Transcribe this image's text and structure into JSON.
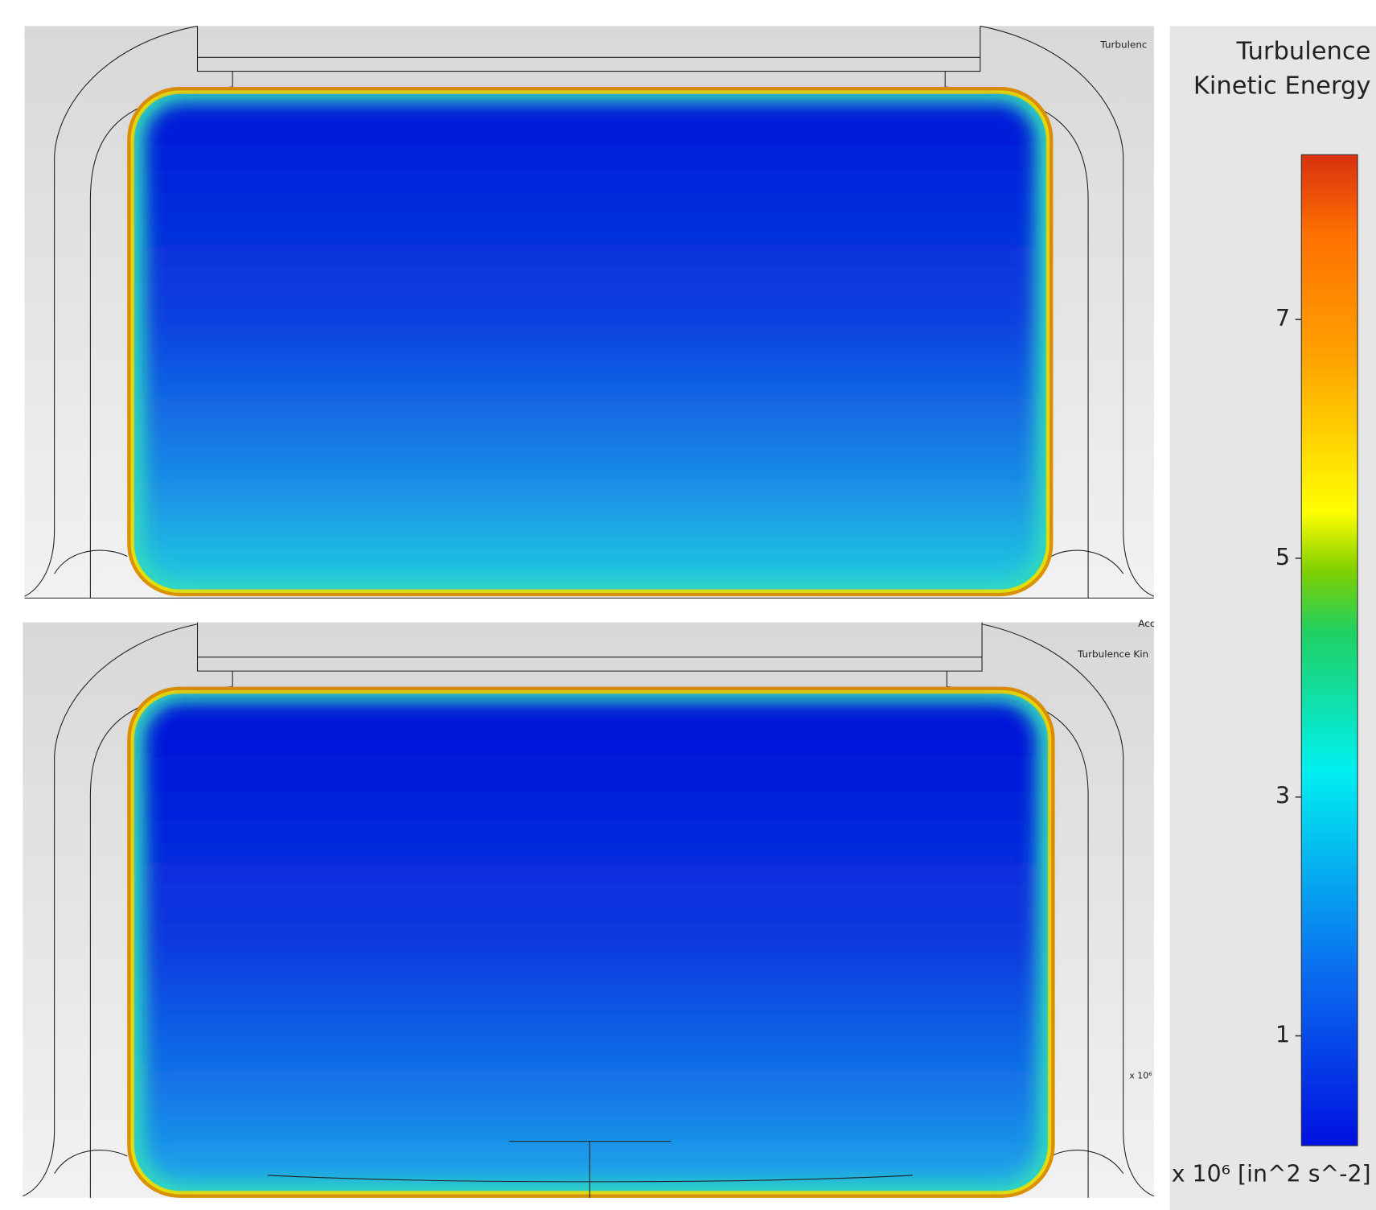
{
  "panels": [
    {
      "label": "Turbulenc"
    },
    {
      "label": "Turbulence Kin",
      "corner_text": "Acc",
      "unit": "x 10⁶"
    }
  ],
  "colorbar": {
    "title": [
      "Turbulence",
      "Kinetic Energy"
    ],
    "lim": [
      0.08,
      8.38
    ],
    "ticks": [
      1,
      3,
      5,
      7
    ],
    "unit": "x 10⁶ [in^2 s^-2]"
  }
}
